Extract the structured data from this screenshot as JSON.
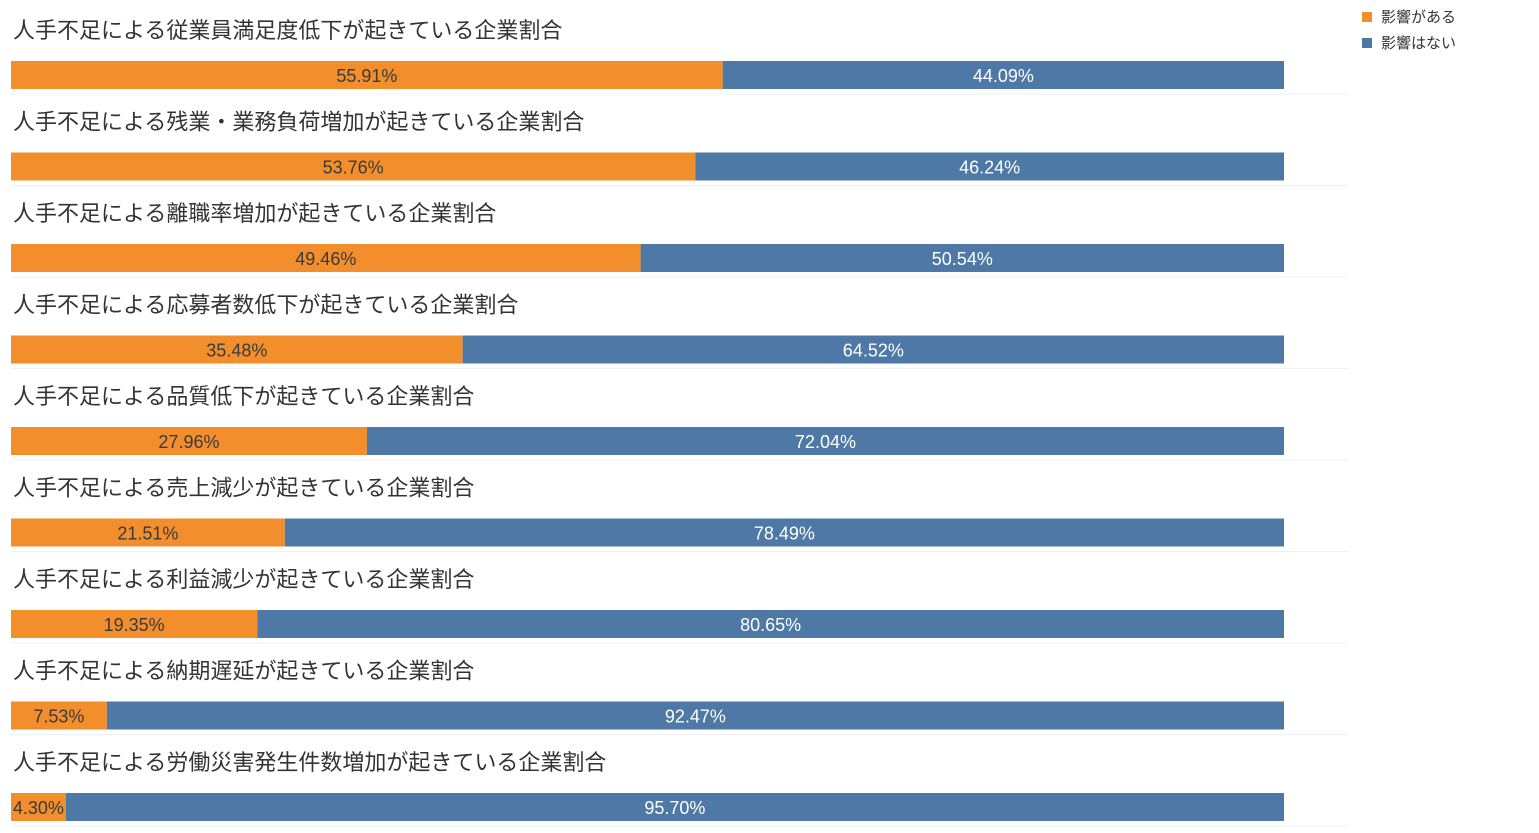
{
  "chart_data": {
    "type": "bar",
    "orientation": "horizontal",
    "stacked": true,
    "unit": "%",
    "xlim": [
      0,
      100
    ],
    "legend_position": "top-right",
    "colors": {
      "affected": "#F28E2B",
      "not_affected": "#4E79A7"
    },
    "series": [
      {
        "name": "影響がある",
        "key": "affected"
      },
      {
        "name": "影響はない",
        "key": "not_affected"
      }
    ],
    "rows": [
      {
        "title": "人手不足による従業員満足度低下が起きている企業割合",
        "affected": 55.91,
        "affected_label": "55.91%",
        "not_affected": 44.09,
        "not_affected_label": "44.09%"
      },
      {
        "title": "人手不足による残業・業務負荷増加が起きている企業割合",
        "affected": 53.76,
        "affected_label": "53.76%",
        "not_affected": 46.24,
        "not_affected_label": "46.24%"
      },
      {
        "title": "人手不足による離職率増加が起きている企業割合",
        "affected": 49.46,
        "affected_label": "49.46%",
        "not_affected": 50.54,
        "not_affected_label": "50.54%"
      },
      {
        "title": "人手不足による応募者数低下が起きている企業割合",
        "affected": 35.48,
        "affected_label": "35.48%",
        "not_affected": 64.52,
        "not_affected_label": "64.52%"
      },
      {
        "title": "人手不足による品質低下が起きている企業割合",
        "affected": 27.96,
        "affected_label": "27.96%",
        "not_affected": 72.04,
        "not_affected_label": "72.04%"
      },
      {
        "title": "人手不足による売上減少が起きている企業割合",
        "affected": 21.51,
        "affected_label": "21.51%",
        "not_affected": 78.49,
        "not_affected_label": "78.49%"
      },
      {
        "title": "人手不足による利益減少が起きている企業割合",
        "affected": 19.35,
        "affected_label": "19.35%",
        "not_affected": 80.65,
        "not_affected_label": "80.65%"
      },
      {
        "title": "人手不足による納期遅延が起きている企業割合",
        "affected": 7.53,
        "affected_label": "7.53%",
        "not_affected": 92.47,
        "not_affected_label": "92.47%"
      },
      {
        "title": "人手不足による労働災害発生件数増加が起きている企業割合",
        "affected": 4.3,
        "affected_label": "4.30%",
        "not_affected": 95.7,
        "not_affected_label": "95.70%"
      }
    ]
  }
}
